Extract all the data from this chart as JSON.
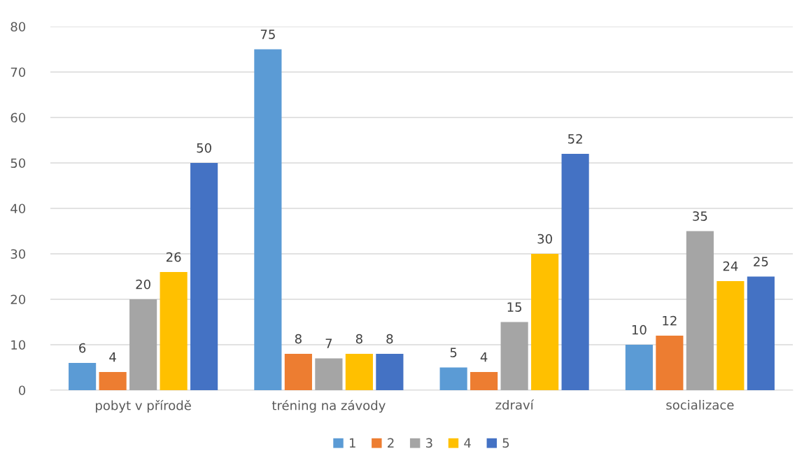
{
  "chart_data": {
    "type": "bar",
    "categories": [
      "pobyt v přírodě",
      "tréning na závody",
      "zdraví",
      "socializace"
    ],
    "series": [
      {
        "name": "1",
        "color": "#5b9bd5",
        "values": [
          6,
          75,
          5,
          10
        ]
      },
      {
        "name": "2",
        "color": "#ed7d31",
        "values": [
          4,
          8,
          4,
          12
        ]
      },
      {
        "name": "3",
        "color": "#a5a5a5",
        "values": [
          20,
          7,
          15,
          35
        ]
      },
      {
        "name": "4",
        "color": "#ffc000",
        "values": [
          26,
          8,
          30,
          24
        ]
      },
      {
        "name": "5",
        "color": "#4472c4",
        "values": [
          50,
          8,
          52,
          25
        ]
      }
    ],
    "ylim": [
      0,
      80
    ],
    "yticks": [
      0,
      10,
      20,
      30,
      40,
      50,
      60,
      70,
      80
    ],
    "grid": "y",
    "legend": "bottom",
    "data_labels": true
  }
}
